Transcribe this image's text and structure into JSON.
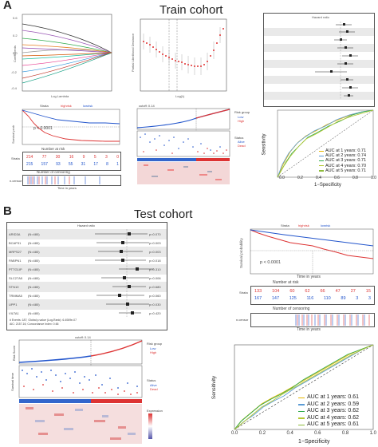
{
  "panelA": {
    "letter": "A",
    "title": "Train cohort",
    "km": {
      "strata_label": "Strata",
      "legend": [
        "highrisk",
        "lowrisk"
      ],
      "ylabel": "Survival probability",
      "pvalue": "p < 0.0001",
      "risk_title": "Number at risk",
      "strata_axis": "Strata",
      "risk_high": [
        "214",
        "77",
        "30",
        "16",
        "9",
        "5",
        "3",
        "0"
      ],
      "risk_low": [
        "215",
        "157",
        "93",
        "55",
        "31",
        "17",
        "8",
        "1"
      ],
      "censor_title": "Number of censoring",
      "censor_axis": "n.censor",
      "xlabel": "Time in years",
      "xticks": [
        "0",
        "1",
        "2",
        "3",
        "4",
        "5",
        "6",
        "7"
      ]
    },
    "riskscore": {
      "label_score": "Risk score",
      "label_time": "Survival time",
      "cutoff": "cutoff: 0.14",
      "legend_title": "Risk group",
      "legend_items": [
        "Low",
        "High"
      ],
      "status_title": "Status",
      "status_items": [
        "Alive",
        "Dead"
      ]
    },
    "roc": {
      "xlabel": "1−Specificity",
      "ylabel": "Sensitivity",
      "ticks": [
        "0.0",
        "0.2",
        "0.4",
        "0.6",
        "0.8",
        "1.0"
      ],
      "legend": [
        {
          "text": "AUC at 1 years: 0.71",
          "color": "#e6b800"
        },
        {
          "text": "AUC at 2 years: 0.74",
          "color": "#5b9bd5"
        },
        {
          "text": "AUC at 3 years: 0.71",
          "color": "#2eaa4a"
        },
        {
          "text": "AUC at 4 years: 0.70",
          "color": "#b5c832"
        },
        {
          "text": "AUC at 5 years: 0.71",
          "color": "#8dbb3a"
        }
      ]
    }
  },
  "panelB": {
    "letter": "B",
    "title": "Test cohort",
    "forest": {
      "title": "Hazard ratio",
      "rows": [
        {
          "gene": "ARID3A",
          "n": "(N=480)",
          "p": "p=0.070"
        },
        {
          "gene": "BCAP31",
          "n": "(N=480)",
          "p": "p=0.003"
        },
        {
          "gene": "MRPS27",
          "n": "(N=480)",
          "p": "p=0.003"
        },
        {
          "gene": "PABPN1",
          "n": "(N=480)",
          "p": "p=0.018"
        },
        {
          "gene": "PTTG1IP",
          "n": "(N=480)",
          "p": "p=0.310"
        },
        {
          "gene": "SLC27A5",
          "n": "(N=480)",
          "p": "p=0.006"
        },
        {
          "gene": "STN10",
          "n": "(N=480)",
          "p": "p=0.680"
        },
        {
          "gene": "TRMMA5",
          "n": "(N=480)",
          "p": "p=0.060"
        },
        {
          "gene": "UPP1",
          "n": "(N=480)",
          "p": "p=0.030"
        },
        {
          "gene": "VILTA1",
          "n": "(N=480)",
          "p": "p=0.420"
        }
      ],
      "footer1": "# Events: 187; Global p-value (Log-Rank): 6.4069e-07",
      "footer2": "AIC: 2157.16; Concordance Index: 0.66"
    },
    "km": {
      "strata_label": "Strata",
      "legend": [
        "highrisk",
        "lowrisk"
      ],
      "ylabel": "Survival probability",
      "pvalue": "p < 0.0001",
      "risk_title": "Number at risk",
      "strata_axis": "Strata",
      "risk_high": [
        "133",
        "104",
        "60",
        "62",
        "66",
        "47",
        "27",
        "15"
      ],
      "risk_low": [
        "167",
        "147",
        "125",
        "116",
        "110",
        "89",
        "3",
        "3"
      ],
      "censor_title": "Number of censoring",
      "censor_axis": "n.censor",
      "xlabel": "Time in years",
      "xticks": [
        "0",
        "1",
        "2",
        "3",
        "4",
        "5",
        "6",
        "7"
      ]
    },
    "riskscore": {
      "label_score": "Risk Score",
      "label_time": "Survival time",
      "cutoff": "cutoff: 0.14",
      "legend_title": "Risk group",
      "legend_items": [
        "Low",
        "High"
      ],
      "status_title": "Status",
      "status_items": [
        "Alive",
        "Dead"
      ],
      "expr_title": "Expression"
    },
    "roc": {
      "xlabel": "1−Specificity",
      "ylabel": "Sensitivity",
      "ticks": [
        "0.0",
        "0.2",
        "0.4",
        "0.6",
        "0.8",
        "1.0"
      ],
      "legend": [
        {
          "text": "AUC at 1 years:  0.61",
          "color": "#e6b800"
        },
        {
          "text": "AUC at 2 years:  0.59",
          "color": "#5b9bd5"
        },
        {
          "text": "AUC at 3 years:  0.62",
          "color": "#2eaa4a"
        },
        {
          "text": "AUC at 4 years:  0.62",
          "color": "#b5c832"
        },
        {
          "text": "AUC at 5 years:  0.61",
          "color": "#8dbb3a"
        }
      ]
    }
  }
}
